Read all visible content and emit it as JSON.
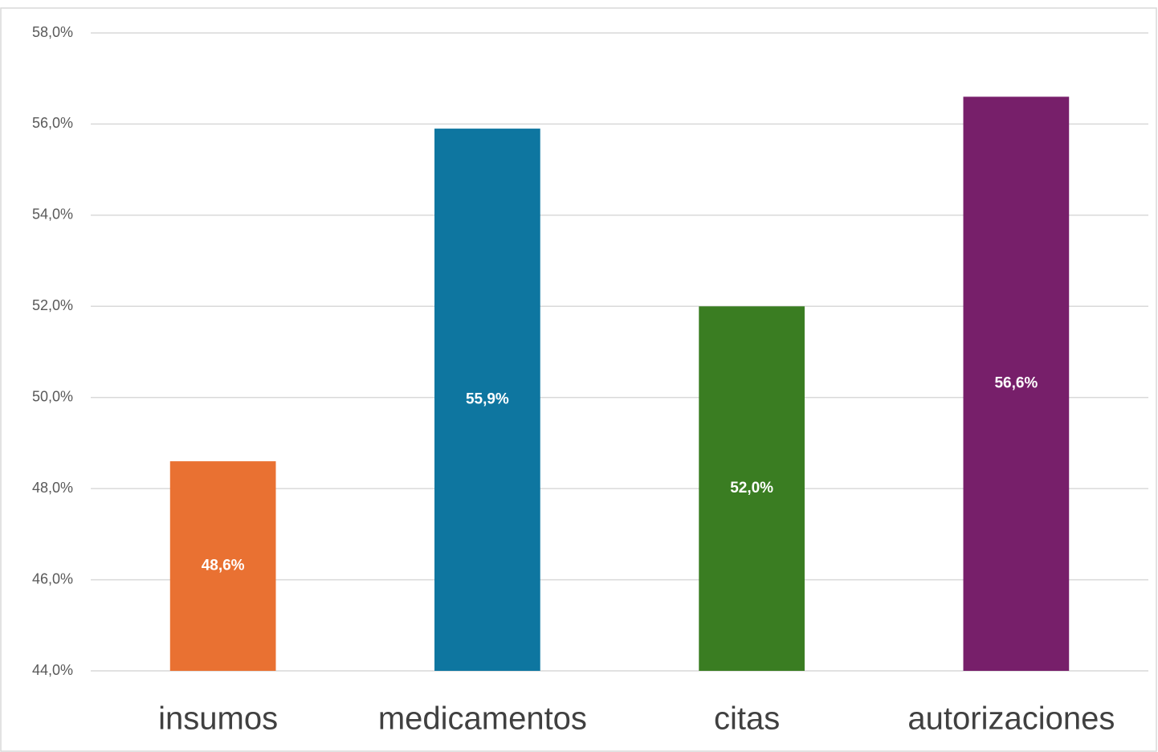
{
  "chart_data": {
    "type": "bar",
    "categories": [
      "insumos",
      "medicamentos",
      "citas",
      "autorizaciones"
    ],
    "values": [
      48.6,
      55.9,
      52.0,
      56.6
    ],
    "value_labels": [
      "48,6%",
      "55,9%",
      "52,0%",
      "56,6%"
    ],
    "colors": [
      "#e97132",
      "#0e76a0",
      "#3a7d22",
      "#771f6a"
    ],
    "ylim": [
      44,
      58
    ],
    "yticks": [
      {
        "value": 44,
        "label": "44,0%"
      },
      {
        "value": 46,
        "label": "46,0%"
      },
      {
        "value": 48,
        "label": "48,0%"
      },
      {
        "value": 50,
        "label": "50,0%"
      },
      {
        "value": 52,
        "label": "52,0%"
      },
      {
        "value": 54,
        "label": "54,0%"
      },
      {
        "value": 56,
        "label": "56,0%"
      },
      {
        "value": 58,
        "label": "58,0%"
      }
    ],
    "grid": true
  }
}
